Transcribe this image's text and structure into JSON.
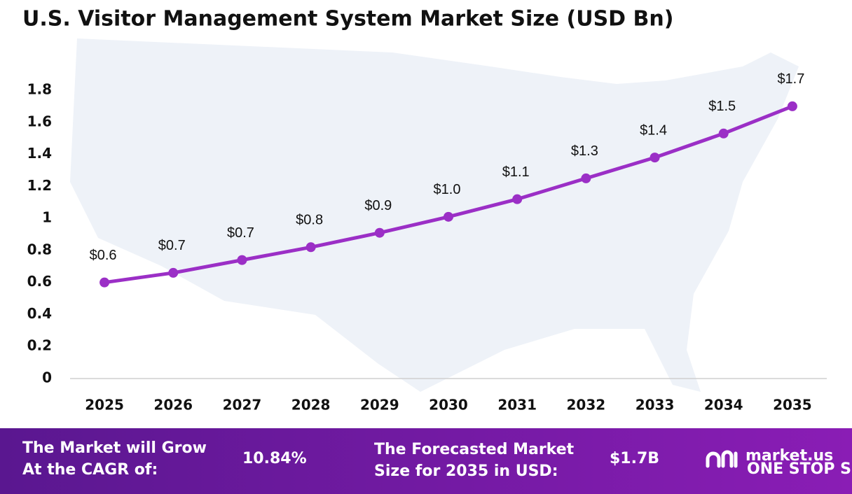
{
  "chart_data": {
    "type": "line",
    "title": "U.S. Visitor Management System Market Size (USD Bn)",
    "categories": [
      "2025",
      "2026",
      "2027",
      "2028",
      "2029",
      "2030",
      "2031",
      "2032",
      "2033",
      "2034",
      "2035"
    ],
    "values": [
      0.6,
      0.66,
      0.74,
      0.82,
      0.91,
      1.01,
      1.12,
      1.25,
      1.38,
      1.53,
      1.7
    ],
    "value_labels": [
      "$0.6",
      "$0.7",
      "$0.7",
      "$0.8",
      "$0.9",
      "$1.0",
      "$1.1",
      "$1.3",
      "$1.4",
      "$1.5",
      "$1.7"
    ],
    "color": "#9b2fc6",
    "ylim": [
      0,
      1.8
    ],
    "yticks": [
      0,
      0.2,
      0.4,
      0.6,
      0.8,
      1,
      1.2,
      1.4,
      1.6,
      1.8
    ],
    "grid": false
  },
  "footer": {
    "cagr_label": [
      "The Market will Grow",
      "At the CAGR of:"
    ],
    "cagr_value": "10.84%",
    "forecast_label": [
      "The Forecasted Market",
      "Size for 2035 in USD:"
    ],
    "forecast_value": "$1.7B",
    "logo_text": "market.us",
    "logo_tagline": "ONE STOP SHOP FOR THE REPORTS"
  }
}
